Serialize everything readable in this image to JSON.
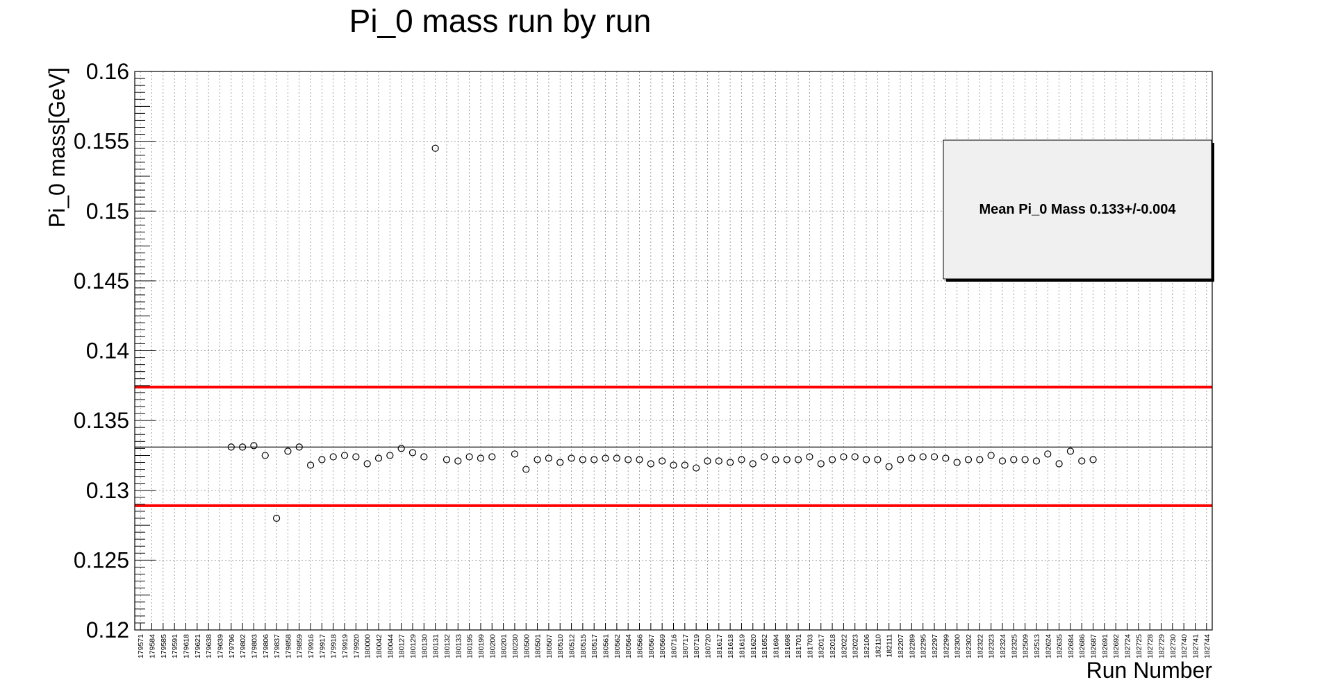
{
  "chart_data": {
    "type": "scatter",
    "title": "Pi_0 mass run by run",
    "xlabel": "Run Number",
    "ylabel": "Pi_0 mass[GeV]",
    "ylim": [
      0.12,
      0.16
    ],
    "yticks": [
      "0.12",
      "0.125",
      "0.13",
      "0.135",
      "0.14",
      "0.145",
      "0.15",
      "0.155",
      "0.16"
    ],
    "grid": true,
    "legend_position": "top-right",
    "legend_text": "Mean Pi_0 Mass 0.133+/-0.004",
    "reference_lines": [
      {
        "name": "mean",
        "value": 0.1331,
        "color": "#000000"
      },
      {
        "name": "upper",
        "value": 0.1374,
        "color": "#ff0000"
      },
      {
        "name": "lower",
        "value": 0.1289,
        "color": "#ff0000"
      }
    ],
    "categories": [
      "179571",
      "179584",
      "179585",
      "179591",
      "179618",
      "179621",
      "179638",
      "179639",
      "179796",
      "179802",
      "179803",
      "179806",
      "179837",
      "179858",
      "179859",
      "179916",
      "179917",
      "179918",
      "179919",
      "179920",
      "180000",
      "180042",
      "180044",
      "180127",
      "180129",
      "180130",
      "180131",
      "180132",
      "180133",
      "180195",
      "180199",
      "180200",
      "180201",
      "180230",
      "180500",
      "180501",
      "180507",
      "180510",
      "180512",
      "180515",
      "180517",
      "180561",
      "180562",
      "180564",
      "180566",
      "180567",
      "180569",
      "180716",
      "180717",
      "180719",
      "180720",
      "181617",
      "181618",
      "181619",
      "181620",
      "181652",
      "181694",
      "181698",
      "181701",
      "181703",
      "182017",
      "182018",
      "182022",
      "182023",
      "182106",
      "182110",
      "182111",
      "182207",
      "182289",
      "182295",
      "182297",
      "182299",
      "182300",
      "182302",
      "182322",
      "182323",
      "182324",
      "182325",
      "182509",
      "182513",
      "182624",
      "182635",
      "182684",
      "182686",
      "182687",
      "182691",
      "182692",
      "182724",
      "182725",
      "182728",
      "182729",
      "182730",
      "182740",
      "182741",
      "182744"
    ],
    "values": [
      null,
      null,
      null,
      null,
      null,
      null,
      null,
      null,
      0.1331,
      0.1331,
      0.1332,
      0.1325,
      0.128,
      0.1328,
      0.1331,
      0.1318,
      0.1322,
      0.1324,
      0.1325,
      0.1324,
      0.1319,
      0.1323,
      0.1325,
      0.133,
      0.1327,
      0.1324,
      0.1545,
      0.1322,
      0.1321,
      0.1324,
      0.1323,
      0.1324,
      null,
      0.1326,
      0.1315,
      0.1322,
      0.1323,
      0.132,
      0.1323,
      0.1322,
      0.1322,
      0.1323,
      0.1323,
      0.1322,
      0.1322,
      0.1319,
      0.1321,
      0.1318,
      0.1318,
      0.1316,
      0.1321,
      0.1321,
      0.132,
      0.1322,
      0.1319,
      0.1324,
      0.1322,
      0.1322,
      0.1322,
      0.1324,
      0.1319,
      0.1322,
      0.1324,
      0.1324,
      0.1322,
      0.1322,
      0.1317,
      0.1322,
      0.1323,
      0.1324,
      0.1324,
      0.1323,
      0.132,
      0.1322,
      0.1322,
      0.1325,
      0.1321,
      0.1322,
      0.1322,
      0.1321,
      0.1326,
      0.1319,
      0.1328,
      0.1321,
      0.1322,
      null,
      null,
      null,
      null,
      null,
      null,
      null,
      null,
      null,
      null
    ]
  }
}
